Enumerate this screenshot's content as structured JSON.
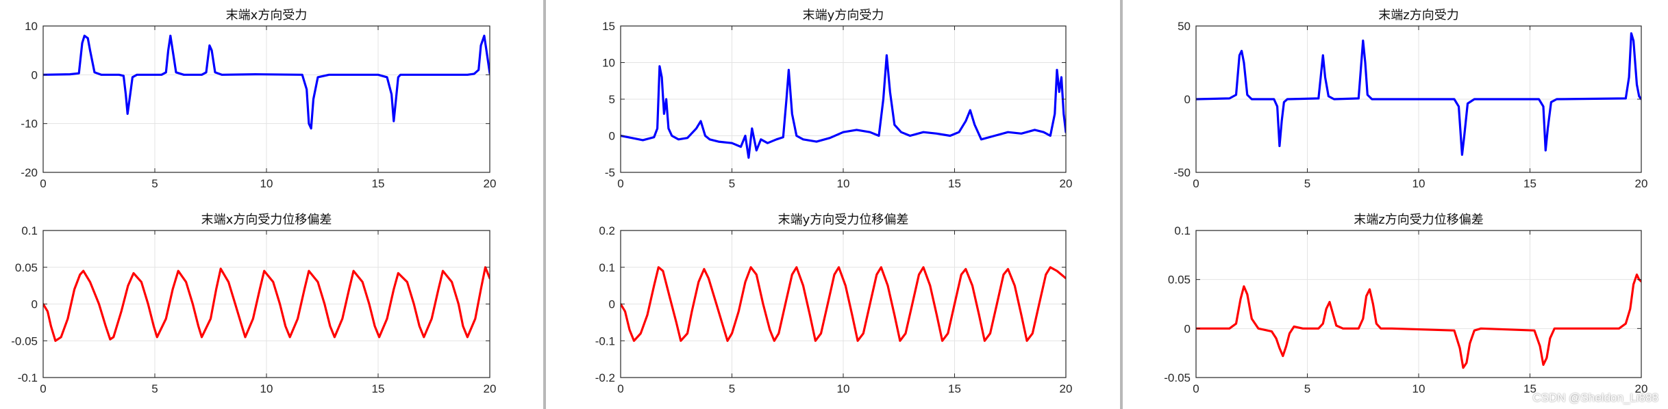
{
  "watermark": "CSDN @Sheldon_Li888",
  "colors": {
    "force": "#0000ff",
    "deviation": "#ff0000"
  },
  "chart_data": [
    {
      "type": "line",
      "name": "force-x",
      "title": "末端x方向受力",
      "xlim": [
        0,
        20
      ],
      "ylim": [
        -20,
        10
      ],
      "xticks": [
        0,
        5,
        10,
        15,
        20
      ],
      "yticks": [
        -20,
        -10,
        0,
        10
      ],
      "grid": true,
      "color": "force",
      "series": [
        {
          "x": [
            0,
            1.2,
            1.6,
            1.75,
            1.85,
            2.0,
            2.1,
            2.3,
            2.6,
            3.4,
            3.6,
            3.7,
            3.78,
            3.9,
            4.0,
            4.2,
            5.3,
            5.5,
            5.6,
            5.7,
            5.8,
            5.95,
            6.3,
            7.1,
            7.3,
            7.45,
            7.55,
            7.7,
            8.0,
            9.5,
            11.6,
            11.8,
            11.9,
            12.0,
            12.1,
            12.3,
            12.8,
            15.0,
            15.4,
            15.6,
            15.7,
            15.8,
            15.9,
            16.0,
            16.3,
            19.0,
            19.3,
            19.5,
            19.6,
            19.75,
            19.85,
            20.0
          ],
          "y": [
            0,
            0.1,
            0.3,
            6.5,
            8,
            7.5,
            5,
            0.5,
            0,
            0,
            -0.2,
            -4,
            -8,
            -4,
            -0.5,
            0,
            0,
            0.5,
            5,
            8,
            5,
            0.5,
            0,
            0,
            0.5,
            6,
            5,
            0.5,
            0,
            0.1,
            0,
            -3,
            -10,
            -11,
            -5,
            -0.5,
            0,
            0,
            -0.5,
            -4,
            -9.5,
            -5,
            -0.5,
            0,
            0,
            0,
            0.2,
            1,
            6,
            8,
            5,
            0.3
          ]
        }
      ]
    },
    {
      "type": "line",
      "name": "force-y",
      "title": "末端y方向受力",
      "xlim": [
        0,
        20
      ],
      "ylim": [
        -5,
        15
      ],
      "xticks": [
        0,
        5,
        10,
        15,
        20
      ],
      "yticks": [
        -5,
        0,
        5,
        10,
        15
      ],
      "grid": true,
      "color": "force",
      "series": [
        {
          "x": [
            0,
            0.5,
            1.0,
            1.5,
            1.65,
            1.75,
            1.85,
            1.95,
            2.05,
            2.15,
            2.3,
            2.6,
            3.0,
            3.4,
            3.6,
            3.8,
            4.0,
            4.4,
            5.0,
            5.4,
            5.6,
            5.75,
            5.9,
            6.1,
            6.3,
            6.6,
            7.0,
            7.3,
            7.45,
            7.55,
            7.7,
            7.9,
            8.2,
            8.8,
            9.4,
            10.0,
            10.6,
            11.2,
            11.6,
            11.8,
            11.95,
            12.1,
            12.3,
            12.6,
            13.0,
            13.6,
            14.2,
            14.8,
            15.2,
            15.5,
            15.7,
            15.9,
            16.2,
            16.8,
            17.4,
            18.0,
            18.6,
            19.0,
            19.3,
            19.5,
            19.6,
            19.7,
            19.8,
            19.9,
            20.0
          ],
          "y": [
            0,
            -0.3,
            -0.6,
            -0.2,
            1,
            9.5,
            8,
            3,
            5,
            1,
            0,
            -0.5,
            -0.3,
            1,
            2,
            0,
            -0.5,
            -0.8,
            -1,
            -1.5,
            0,
            -3,
            1,
            -2,
            -0.5,
            -1,
            -0.5,
            -0.2,
            5,
            9,
            3,
            0,
            -0.5,
            -0.8,
            -0.3,
            0.5,
            0.8,
            0.5,
            0,
            5,
            11,
            6,
            1.5,
            0.5,
            0,
            0.5,
            0.3,
            0,
            0.5,
            2,
            3.5,
            1.5,
            -0.5,
            0,
            0.5,
            0.3,
            0.8,
            0.5,
            0,
            3,
            9,
            6,
            8,
            3,
            0.5
          ]
        }
      ]
    },
    {
      "type": "line",
      "name": "force-z",
      "title": "末端z方向受力",
      "xlim": [
        0,
        20
      ],
      "ylim": [
        -50,
        50
      ],
      "xticks": [
        0,
        5,
        10,
        15,
        20
      ],
      "yticks": [
        -50,
        0,
        50
      ],
      "grid": true,
      "color": "force",
      "series": [
        {
          "x": [
            0,
            1.5,
            1.8,
            1.95,
            2.05,
            2.15,
            2.3,
            2.5,
            3.5,
            3.65,
            3.75,
            3.85,
            3.95,
            4.1,
            5.5,
            5.6,
            5.7,
            5.8,
            5.95,
            6.2,
            7.3,
            7.4,
            7.5,
            7.6,
            7.7,
            7.9,
            11.6,
            11.8,
            11.95,
            12.05,
            12.2,
            12.5,
            15.4,
            15.6,
            15.7,
            15.8,
            15.95,
            16.2,
            19.3,
            19.45,
            19.55,
            19.65,
            19.8,
            19.9,
            20.0
          ],
          "y": [
            0,
            0.5,
            3,
            30,
            33,
            25,
            3,
            0,
            0,
            -5,
            -32,
            -15,
            -2,
            0,
            0.5,
            15,
            30,
            15,
            2,
            0,
            0.5,
            20,
            40,
            25,
            3,
            0,
            0,
            -5,
            -38,
            -25,
            -3,
            0,
            0,
            -5,
            -35,
            -20,
            -2,
            0,
            0.5,
            15,
            45,
            40,
            10,
            2,
            0
          ]
        }
      ]
    },
    {
      "type": "line",
      "name": "deviation-x",
      "title": "末端x方向受力位移偏差",
      "xlim": [
        0,
        20
      ],
      "ylim": [
        -0.1,
        0.1
      ],
      "xticks": [
        0,
        5,
        10,
        15,
        20
      ],
      "yticks": [
        -0.1,
        -0.05,
        0,
        0.05,
        0.1
      ],
      "grid": true,
      "color": "deviation",
      "series": [
        {
          "x": [
            0,
            0.2,
            0.35,
            0.55,
            0.8,
            1.1,
            1.4,
            1.65,
            1.8,
            2.1,
            2.5,
            2.8,
            3.0,
            3.15,
            3.5,
            3.8,
            4.05,
            4.4,
            4.7,
            4.95,
            5.1,
            5.5,
            5.8,
            6.05,
            6.4,
            6.7,
            6.95,
            7.1,
            7.5,
            7.75,
            7.95,
            8.3,
            8.6,
            8.9,
            9.05,
            9.4,
            9.7,
            9.9,
            10.3,
            10.6,
            10.85,
            11.05,
            11.4,
            11.7,
            11.9,
            12.3,
            12.6,
            12.85,
            13.05,
            13.4,
            13.7,
            13.9,
            14.3,
            14.6,
            14.85,
            15.05,
            15.4,
            15.7,
            15.9,
            16.3,
            16.6,
            16.85,
            17.05,
            17.4,
            17.7,
            17.9,
            18.3,
            18.6,
            18.8,
            19.0,
            19.35,
            19.6,
            19.8,
            20.0
          ],
          "y": [
            0,
            -0.01,
            -0.03,
            -0.05,
            -0.045,
            -0.02,
            0.02,
            0.04,
            0.045,
            0.03,
            0,
            -0.03,
            -0.048,
            -0.045,
            -0.01,
            0.025,
            0.042,
            0.03,
            0,
            -0.03,
            -0.045,
            -0.02,
            0.02,
            0.045,
            0.03,
            0,
            -0.03,
            -0.045,
            -0.02,
            0.02,
            0.048,
            0.03,
            0,
            -0.03,
            -0.045,
            -0.02,
            0.02,
            0.045,
            0.03,
            0,
            -0.03,
            -0.045,
            -0.02,
            0.02,
            0.045,
            0.03,
            0,
            -0.03,
            -0.045,
            -0.02,
            0.02,
            0.045,
            0.03,
            0,
            -0.03,
            -0.045,
            -0.02,
            0.02,
            0.042,
            0.03,
            0,
            -0.03,
            -0.045,
            -0.02,
            0.02,
            0.045,
            0.03,
            0,
            -0.03,
            -0.045,
            -0.02,
            0.02,
            0.05,
            0.035
          ]
        }
      ]
    },
    {
      "type": "line",
      "name": "deviation-y",
      "title": "末端y方向受力位移偏差",
      "xlim": [
        0,
        20
      ],
      "ylim": [
        -0.2,
        0.2
      ],
      "xticks": [
        0,
        5,
        10,
        15,
        20
      ],
      "yticks": [
        -0.2,
        -0.1,
        0,
        0.1,
        0.2
      ],
      "grid": true,
      "color": "deviation",
      "series": [
        {
          "x": [
            0,
            0.2,
            0.4,
            0.6,
            0.9,
            1.2,
            1.5,
            1.7,
            1.9,
            2.2,
            2.5,
            2.7,
            3.0,
            3.2,
            3.5,
            3.75,
            3.95,
            4.3,
            4.6,
            4.8,
            5.0,
            5.3,
            5.6,
            5.85,
            6.1,
            6.4,
            6.7,
            6.9,
            7.1,
            7.4,
            7.7,
            7.9,
            8.2,
            8.5,
            8.75,
            9.0,
            9.3,
            9.6,
            9.8,
            10.1,
            10.4,
            10.65,
            10.9,
            11.2,
            11.5,
            11.7,
            12.0,
            12.3,
            12.55,
            12.8,
            13.1,
            13.4,
            13.6,
            13.9,
            14.2,
            14.45,
            14.7,
            15.0,
            15.3,
            15.5,
            15.8,
            16.1,
            16.35,
            16.6,
            16.9,
            17.2,
            17.4,
            17.7,
            18.0,
            18.25,
            18.5,
            18.8,
            19.1,
            19.3,
            19.6,
            19.8,
            20.0
          ],
          "y": [
            0,
            -0.02,
            -0.07,
            -0.1,
            -0.08,
            -0.03,
            0.05,
            0.1,
            0.09,
            0.02,
            -0.05,
            -0.1,
            -0.08,
            -0.02,
            0.06,
            0.095,
            0.07,
            0,
            -0.06,
            -0.1,
            -0.08,
            -0.02,
            0.06,
            0.1,
            0.08,
            0,
            -0.07,
            -0.1,
            -0.08,
            0,
            0.08,
            0.1,
            0.05,
            -0.03,
            -0.1,
            -0.08,
            0,
            0.08,
            0.1,
            0.05,
            -0.03,
            -0.1,
            -0.08,
            0,
            0.08,
            0.1,
            0.05,
            -0.03,
            -0.1,
            -0.08,
            0,
            0.08,
            0.1,
            0.05,
            -0.03,
            -0.1,
            -0.08,
            0,
            0.08,
            0.095,
            0.05,
            -0.03,
            -0.1,
            -0.08,
            0,
            0.08,
            0.095,
            0.05,
            -0.03,
            -0.1,
            -0.08,
            0,
            0.08,
            0.1,
            0.09,
            0.08,
            0.07
          ]
        }
      ]
    },
    {
      "type": "line",
      "name": "deviation-z",
      "title": "末端z方向受力位移偏差",
      "xlim": [
        0,
        20
      ],
      "ylim": [
        -0.05,
        0.1
      ],
      "xticks": [
        0,
        5,
        10,
        15,
        20
      ],
      "yticks": [
        -0.05,
        0,
        0.05,
        0.1
      ],
      "grid": true,
      "color": "deviation",
      "series": [
        {
          "x": [
            0,
            1.5,
            1.8,
            2.0,
            2.15,
            2.3,
            2.5,
            2.8,
            3.4,
            3.6,
            3.75,
            3.9,
            4.05,
            4.2,
            4.4,
            4.8,
            5.5,
            5.7,
            5.85,
            6.0,
            6.15,
            6.3,
            6.6,
            7.3,
            7.5,
            7.65,
            7.8,
            7.95,
            8.1,
            8.3,
            8.8,
            11.6,
            11.85,
            12.0,
            12.15,
            12.3,
            12.5,
            12.8,
            15.2,
            15.45,
            15.6,
            15.75,
            15.9,
            16.1,
            16.4,
            19.0,
            19.3,
            19.5,
            19.65,
            19.8,
            19.9,
            20.0
          ],
          "y": [
            0,
            0,
            0.005,
            0.03,
            0.043,
            0.035,
            0.01,
            0,
            -0.003,
            -0.01,
            -0.02,
            -0.028,
            -0.018,
            -0.005,
            0.002,
            0,
            0,
            0.005,
            0.02,
            0.027,
            0.015,
            0.003,
            0,
            0,
            0.01,
            0.033,
            0.04,
            0.025,
            0.005,
            0,
            0,
            -0.002,
            -0.02,
            -0.04,
            -0.035,
            -0.015,
            -0.002,
            0,
            -0.002,
            -0.018,
            -0.037,
            -0.03,
            -0.01,
            0,
            0,
            0,
            0.005,
            0.02,
            0.045,
            0.055,
            0.05,
            0.048
          ]
        }
      ]
    }
  ]
}
